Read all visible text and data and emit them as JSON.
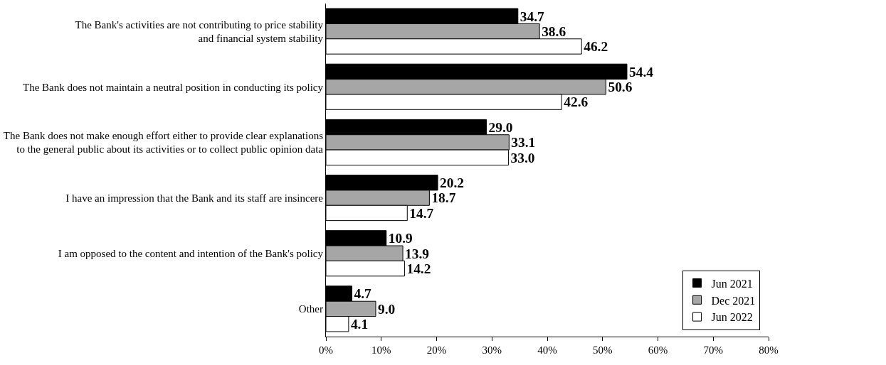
{
  "chart_data": {
    "type": "bar",
    "orientation": "horizontal",
    "categories": [
      "The Bank's activities are not contributing to price stability\nand financial system stability",
      "The Bank does not maintain a neutral position in conducting its policy",
      "The Bank does not make enough effort either to provide clear explanations\nto the general public about its activities or to collect public opinion data",
      "I have an impression that the Bank and its staff are insincere",
      "I am opposed to the content and intention of the Bank's policy",
      "Other"
    ],
    "series": [
      {
        "name": "Jun 2021",
        "color": "#000000",
        "values": [
          34.7,
          54.4,
          29.0,
          20.2,
          10.9,
          4.7
        ],
        "value_labels": [
          "34.7",
          "54.4",
          "29.0",
          "20.2",
          "10.9",
          "4.7"
        ]
      },
      {
        "name": "Dec 2021",
        "color": "#a6a6a6",
        "values": [
          38.6,
          50.6,
          33.1,
          18.7,
          13.9,
          9.0
        ],
        "value_labels": [
          "38.6",
          "50.6",
          "33.1",
          "18.7",
          "13.9",
          "9.0"
        ]
      },
      {
        "name": "Jun 2022",
        "color": "#ffffff",
        "values": [
          46.2,
          42.6,
          33.0,
          14.7,
          14.2,
          4.1
        ],
        "value_labels": [
          "46.2",
          "42.6",
          "33.0",
          "14.7",
          "14.2",
          "4.1"
        ]
      }
    ],
    "xlim": [
      0,
      80
    ],
    "xticks": [
      {
        "value": 0,
        "label": "0%"
      },
      {
        "value": 10,
        "label": "10%"
      },
      {
        "value": 20,
        "label": "20%"
      },
      {
        "value": 30,
        "label": "30%"
      },
      {
        "value": 40,
        "label": "40%"
      },
      {
        "value": 50,
        "label": "50%"
      },
      {
        "value": 60,
        "label": "60%"
      },
      {
        "value": 70,
        "label": "70%"
      },
      {
        "value": 80,
        "label": "80%"
      }
    ],
    "legend": "bottom right"
  }
}
